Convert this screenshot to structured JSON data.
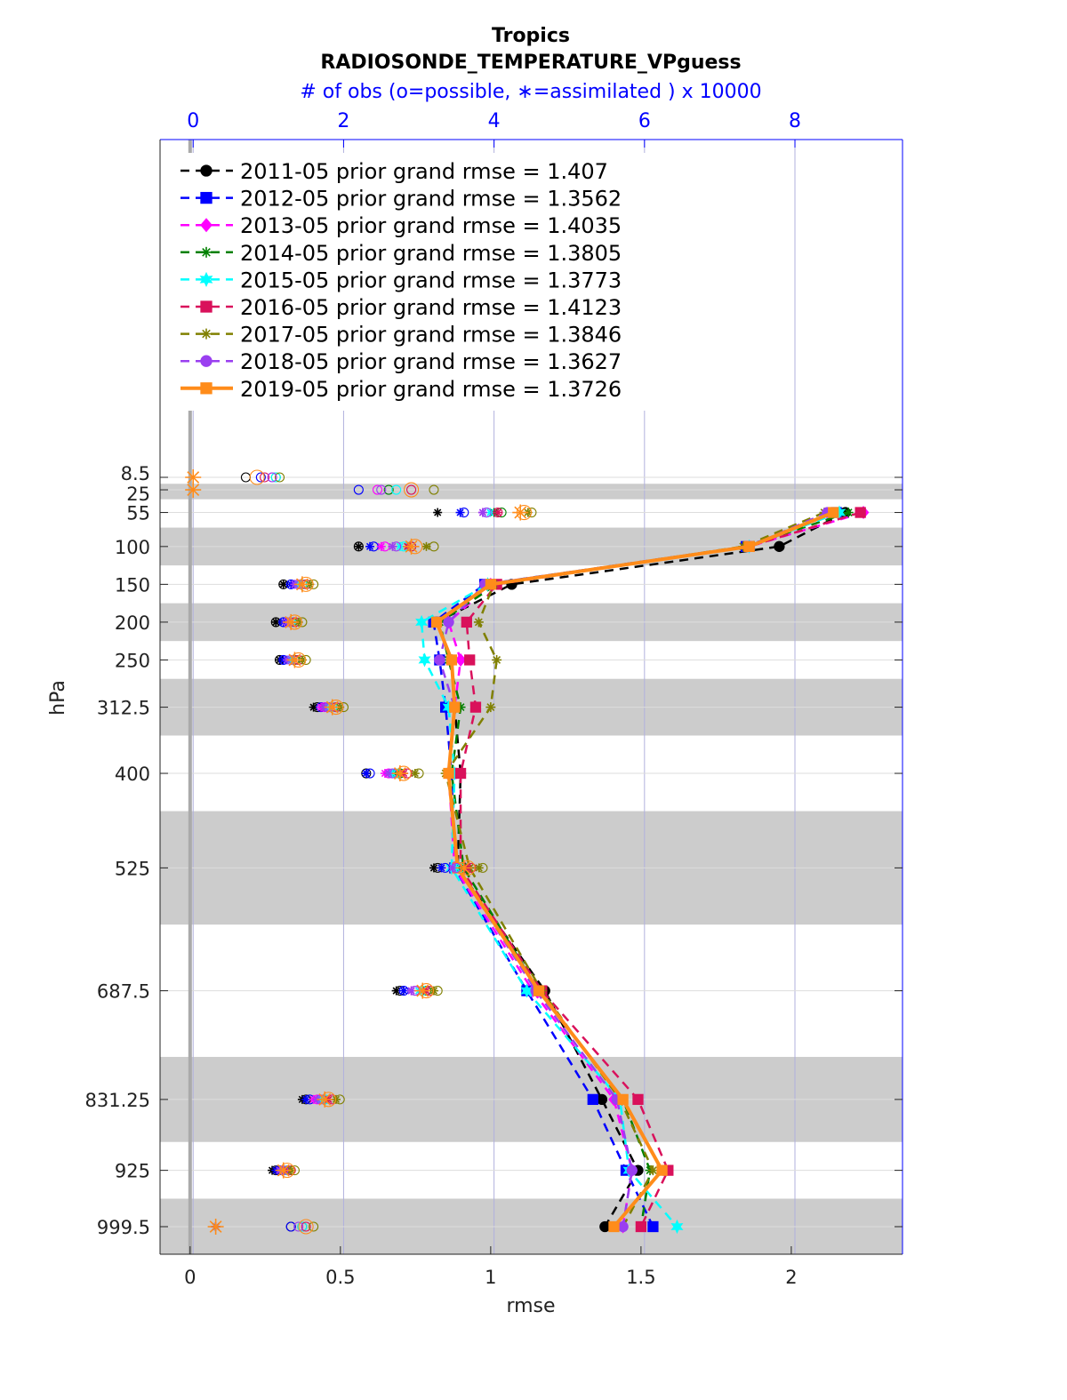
{
  "chart_data": {
    "type": "line",
    "title": "Tropics",
    "subtitle": "RADIOSONDE_TEMPERATURE_VPguess",
    "top_axis_label": "# of obs (o=possible, ∗=assimilated ) x 10000",
    "xlabel": "rmse",
    "ylabel": "hPa",
    "xlim": [
      -0.1,
      2.37
    ],
    "x_ticks": [
      0,
      0.5,
      1,
      1.5,
      2
    ],
    "x_tick_labels": [
      "0",
      "0.5",
      "1",
      "1.5",
      "2"
    ],
    "top_lim": [
      -0.44,
      9.43
    ],
    "top_ticks": [
      0,
      2,
      4,
      6,
      8
    ],
    "top_tick_labels": [
      "0",
      "2",
      "4",
      "6",
      "8"
    ],
    "levels": [
      8.5,
      25,
      55,
      100,
      150,
      200,
      250,
      312.5,
      400,
      525,
      687.5,
      831.25,
      925,
      999.5
    ],
    "level_labels": [
      "8.5",
      "25",
      "55",
      "100",
      "150",
      "200",
      "250",
      "312.5",
      "400",
      "525",
      "687.5",
      "831.25",
      "925",
      "999.5"
    ],
    "shaded_bands": [
      [
        17,
        37.5
      ],
      [
        75,
        125
      ],
      [
        175,
        225
      ],
      [
        275,
        350
      ],
      [
        450,
        600
      ],
      [
        775,
        887.5
      ],
      [
        962.5,
        1037.5
      ]
    ],
    "series": [
      {
        "name": "2011-05 prior grand rmse = 1.407",
        "color": "#000000",
        "marker": "circle",
        "dash": "dashed",
        "rmse": [
          null,
          null,
          2.18,
          1.96,
          1.07,
          0.82,
          0.87,
          0.88,
          0.9,
          0.89,
          1.18,
          1.37,
          1.49,
          1.38
        ],
        "obs_possible": [
          0.7,
          null,
          null,
          2.2,
          1.2,
          1.1,
          1.15,
          1.65,
          2.3,
          3.25,
          2.75,
          1.5,
          1.1,
          1.3
        ],
        "obs_assimilated": [
          null,
          null,
          3.25,
          2.2,
          1.2,
          1.1,
          1.15,
          1.6,
          2.3,
          3.2,
          2.7,
          1.45,
          1.05,
          0.3
        ]
      },
      {
        "name": "2012-05 prior grand rmse = 1.3562",
        "color": "#0000ff",
        "marker": "square",
        "dash": "dashed",
        "rmse": [
          null,
          null,
          2.15,
          1.85,
          0.98,
          0.81,
          0.83,
          0.85,
          0.87,
          0.88,
          1.12,
          1.34,
          1.45,
          1.54
        ],
        "obs_possible": [
          0.9,
          2.2,
          3.6,
          2.4,
          1.3,
          1.2,
          1.2,
          1.7,
          2.35,
          3.35,
          2.8,
          1.55,
          1.15,
          1.3
        ],
        "obs_assimilated": [
          null,
          null,
          3.55,
          2.35,
          1.3,
          1.2,
          1.2,
          1.7,
          2.3,
          3.3,
          2.8,
          1.5,
          1.1,
          0.3
        ]
      },
      {
        "name": "2013-05 prior grand rmse = 1.4035",
        "color": "#ff00ff",
        "marker": "diamond",
        "dash": "dashed",
        "rmse": [
          null,
          null,
          2.24,
          1.86,
          1.0,
          0.86,
          0.9,
          0.88,
          0.86,
          0.88,
          1.14,
          1.41,
          1.47,
          1.44
        ],
        "obs_possible": [
          1.05,
          2.45,
          3.9,
          2.55,
          1.4,
          1.3,
          1.35,
          1.75,
          2.6,
          3.5,
          2.95,
          1.65,
          1.2,
          1.45
        ],
        "obs_assimilated": [
          null,
          null,
          3.85,
          2.5,
          1.35,
          1.25,
          1.3,
          1.7,
          2.55,
          3.45,
          2.9,
          1.6,
          1.15,
          0.3
        ]
      },
      {
        "name": "2014-05 prior grand rmse = 1.3805",
        "color": "#008000",
        "marker": "star",
        "dash": "dashed",
        "rmse": [
          null,
          null,
          2.19,
          1.85,
          1.02,
          0.83,
          0.86,
          0.9,
          0.87,
          0.91,
          1.16,
          1.44,
          1.53,
          1.5
        ],
        "obs_possible": [
          1.1,
          2.6,
          4.1,
          2.9,
          1.45,
          1.3,
          1.35,
          1.8,
          2.75,
          3.6,
          3.1,
          1.75,
          1.25,
          1.45
        ],
        "obs_assimilated": [
          null,
          null,
          4.0,
          2.85,
          1.4,
          1.3,
          1.3,
          1.75,
          2.7,
          3.55,
          3.05,
          1.7,
          1.2,
          0.3
        ]
      },
      {
        "name": "2015-05 prior grand rmse = 1.3773",
        "color": "#00ffff",
        "marker": "hexagram",
        "dash": "dashed",
        "rmse": [
          null,
          null,
          2.16,
          1.86,
          0.99,
          0.77,
          0.78,
          0.86,
          0.88,
          0.87,
          1.12,
          1.43,
          1.46,
          1.62
        ],
        "obs_possible": [
          1.1,
          2.7,
          3.9,
          2.8,
          1.45,
          1.3,
          1.3,
          1.85,
          2.7,
          3.55,
          3.05,
          1.75,
          1.25,
          1.45
        ],
        "obs_assimilated": [
          null,
          null,
          3.95,
          2.75,
          1.4,
          1.3,
          1.3,
          1.8,
          2.65,
          3.5,
          3.0,
          1.7,
          1.2,
          0.3
        ]
      },
      {
        "name": "2016-05 prior grand rmse = 1.4123",
        "color": "#d9115b",
        "marker": "square",
        "dash": "dashed",
        "rmse": [
          null,
          null,
          2.23,
          1.86,
          1.02,
          0.92,
          0.93,
          0.95,
          0.9,
          0.9,
          1.17,
          1.49,
          1.59,
          1.5
        ],
        "obs_possible": [
          0.95,
          2.9,
          4.05,
          2.9,
          1.5,
          1.35,
          1.4,
          1.9,
          2.85,
          3.7,
          3.15,
          1.85,
          1.3,
          1.5
        ],
        "obs_assimilated": [
          null,
          null,
          4.05,
          2.85,
          1.45,
          1.3,
          1.35,
          1.85,
          2.8,
          3.65,
          3.1,
          1.8,
          1.25,
          0.3
        ]
      },
      {
        "name": "2017-05 prior grand rmse = 1.3846",
        "color": "#808000",
        "marker": "star",
        "dash": "dashed",
        "rmse": [
          null,
          null,
          2.11,
          1.84,
          1.01,
          0.96,
          1.02,
          1.0,
          0.85,
          0.93,
          1.17,
          1.43,
          1.54,
          1.44
        ],
        "obs_possible": [
          1.15,
          3.2,
          4.5,
          3.2,
          1.6,
          1.45,
          1.5,
          2.0,
          3.0,
          3.85,
          3.25,
          1.95,
          1.35,
          1.6
        ],
        "obs_assimilated": [
          null,
          null,
          4.45,
          3.1,
          1.55,
          1.4,
          1.45,
          1.95,
          2.95,
          3.8,
          3.2,
          1.9,
          1.3,
          0.3
        ]
      },
      {
        "name": "2018-05 prior grand rmse = 1.3627",
        "color": "#9a3ff0",
        "marker": "circle",
        "dash": "dashed",
        "rmse": [
          null,
          null,
          2.12,
          1.86,
          0.98,
          0.86,
          0.83,
          0.88,
          0.86,
          0.89,
          1.15,
          1.42,
          1.47,
          1.44
        ],
        "obs_possible": [
          1.05,
          2.5,
          3.9,
          2.7,
          1.4,
          1.25,
          1.3,
          1.8,
          2.65,
          3.5,
          2.95,
          1.7,
          1.2,
          1.4
        ],
        "obs_assimilated": [
          null,
          null,
          3.85,
          2.65,
          1.35,
          1.25,
          1.25,
          1.75,
          2.6,
          3.45,
          2.9,
          1.65,
          1.15,
          0.3
        ]
      },
      {
        "name": "2019-05 prior grand rmse = 1.3726",
        "color": "#ff8c1a",
        "marker": "square",
        "dash": "solid",
        "rmse": [
          null,
          null,
          2.14,
          1.86,
          1.0,
          0.82,
          0.87,
          0.88,
          0.86,
          0.89,
          1.16,
          1.44,
          1.57,
          1.41
        ],
        "obs_possible": [
          0.85,
          2.9,
          4.4,
          2.95,
          1.5,
          1.35,
          1.4,
          1.9,
          2.8,
          3.65,
          3.1,
          1.8,
          1.25,
          1.5
        ],
        "obs_assimilated": [
          0.0,
          0.0,
          4.35,
          2.9,
          1.45,
          1.3,
          1.35,
          1.85,
          2.75,
          3.6,
          3.05,
          1.75,
          1.2,
          0.3
        ]
      }
    ]
  }
}
